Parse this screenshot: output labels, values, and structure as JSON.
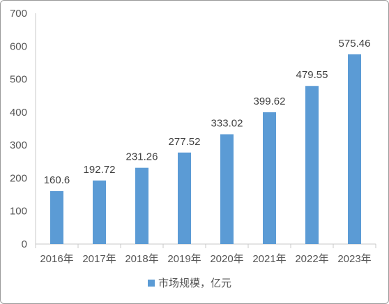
{
  "chart_data": {
    "type": "bar",
    "categories": [
      "2016年",
      "2017年",
      "2018年",
      "2019年",
      "2020年",
      "2021年",
      "2022年",
      "2023年"
    ],
    "values": [
      160.6,
      192.72,
      231.26,
      277.52,
      333.02,
      399.62,
      479.55,
      575.46
    ],
    "data_labels": [
      "160.6",
      "192.72",
      "231.26",
      "277.52",
      "333.02",
      "399.62",
      "479.55",
      "575.46"
    ],
    "series": [
      {
        "name": "市场规模，亿元",
        "values": [
          160.6,
          192.72,
          231.26,
          277.52,
          333.02,
          399.62,
          479.55,
          575.46
        ]
      }
    ],
    "title": "",
    "xlabel": "",
    "ylabel": "",
    "ylim": [
      0,
      700
    ],
    "yticks": [
      0,
      100,
      200,
      300,
      400,
      500,
      600,
      700
    ],
    "grid": false,
    "legend_position": "bottom",
    "bar_color": "#5b9bd5"
  }
}
